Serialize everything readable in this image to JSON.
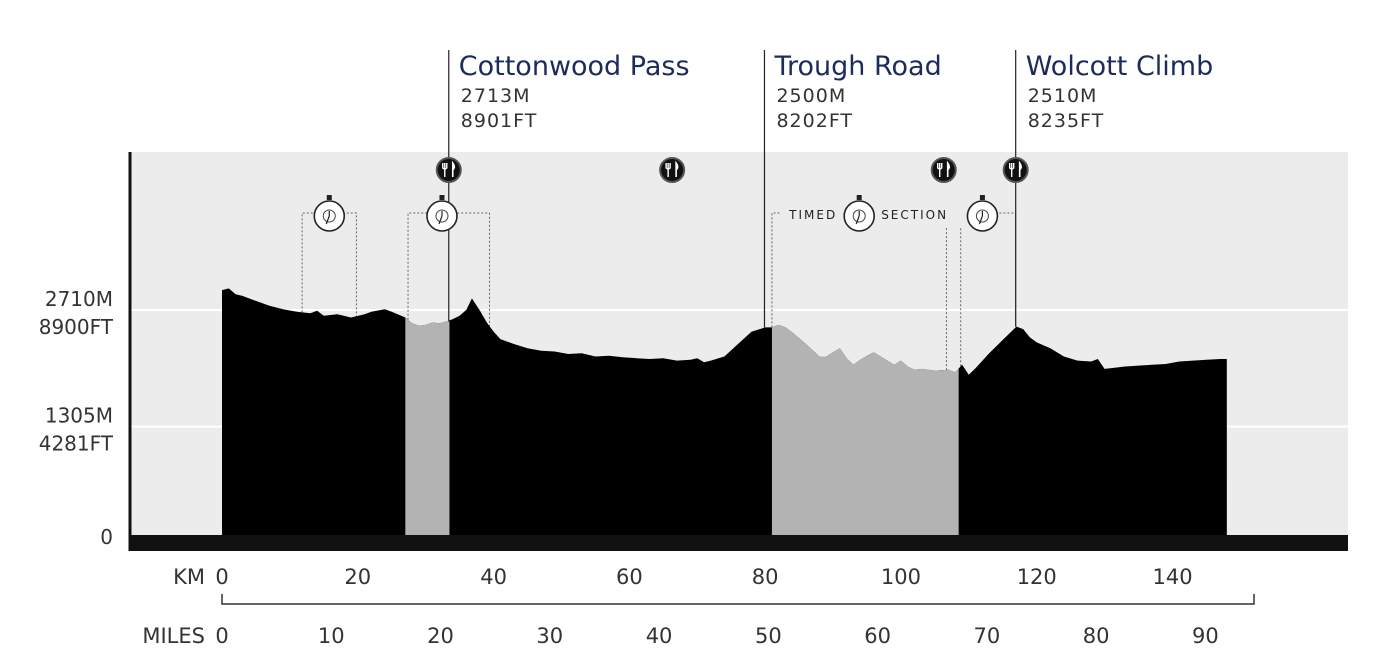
{
  "chart_data": {
    "type": "area",
    "title": "",
    "x_unit": "KM",
    "x2_unit": "MILES",
    "km_ticks": [
      0,
      20,
      40,
      60,
      80,
      100,
      120,
      140
    ],
    "miles_ticks": [
      0,
      10,
      20,
      30,
      40,
      50,
      60,
      70,
      80,
      90
    ],
    "xlim_km": [
      0,
      152
    ],
    "ylim_m": [
      0,
      4200
    ],
    "y_ticks": [
      {
        "value_m": 2710,
        "label_m": "2710M",
        "label_ft": "8900FT"
      },
      {
        "value_m": 1305,
        "label_m": "1305M",
        "label_ft": "4281FT"
      },
      {
        "value_m": 0,
        "label_m": "0",
        "label_ft": ""
      }
    ],
    "profile": [
      [
        0,
        2950
      ],
      [
        1,
        2970
      ],
      [
        2,
        2900
      ],
      [
        3,
        2880
      ],
      [
        5,
        2820
      ],
      [
        7,
        2760
      ],
      [
        9,
        2720
      ],
      [
        11,
        2690
      ],
      [
        13,
        2670
      ],
      [
        14,
        2700
      ],
      [
        15,
        2640
      ],
      [
        17,
        2660
      ],
      [
        19,
        2620
      ],
      [
        21,
        2660
      ],
      [
        22,
        2690
      ],
      [
        24,
        2720
      ],
      [
        25,
        2690
      ],
      [
        27,
        2620
      ],
      [
        28,
        2550
      ],
      [
        29,
        2520
      ],
      [
        30,
        2530
      ],
      [
        31,
        2560
      ],
      [
        32,
        2550
      ],
      [
        33,
        2570
      ],
      [
        34,
        2600
      ],
      [
        35,
        2640
      ],
      [
        36,
        2713
      ],
      [
        36.8,
        2850
      ],
      [
        38,
        2700
      ],
      [
        39,
        2560
      ],
      [
        40,
        2450
      ],
      [
        41,
        2360
      ],
      [
        43,
        2300
      ],
      [
        45,
        2250
      ],
      [
        47,
        2220
      ],
      [
        49,
        2210
      ],
      [
        51,
        2180
      ],
      [
        53,
        2190
      ],
      [
        55,
        2150
      ],
      [
        57,
        2160
      ],
      [
        59,
        2140
      ],
      [
        61,
        2130
      ],
      [
        63,
        2120
      ],
      [
        65,
        2130
      ],
      [
        67,
        2100
      ],
      [
        69,
        2110
      ],
      [
        70,
        2130
      ],
      [
        71,
        2080
      ],
      [
        72,
        2100
      ],
      [
        74,
        2150
      ],
      [
        76,
        2300
      ],
      [
        78,
        2450
      ],
      [
        80,
        2500
      ],
      [
        81,
        2500
      ],
      [
        82,
        2530
      ],
      [
        83,
        2500
      ],
      [
        84,
        2440
      ],
      [
        86,
        2300
      ],
      [
        88,
        2150
      ],
      [
        89,
        2150
      ],
      [
        90,
        2200
      ],
      [
        91,
        2250
      ],
      [
        92,
        2130
      ],
      [
        93,
        2050
      ],
      [
        94,
        2110
      ],
      [
        95,
        2160
      ],
      [
        96,
        2200
      ],
      [
        97,
        2150
      ],
      [
        98,
        2100
      ],
      [
        99,
        2050
      ],
      [
        100,
        2100
      ],
      [
        101,
        2030
      ],
      [
        102,
        1990
      ],
      [
        103,
        2000
      ],
      [
        104,
        1990
      ],
      [
        105,
        1980
      ],
      [
        107,
        1990
      ],
      [
        108,
        1960
      ],
      [
        109,
        2050
      ],
      [
        110,
        1930
      ],
      [
        111,
        2010
      ],
      [
        113,
        2190
      ],
      [
        115,
        2350
      ],
      [
        117,
        2510
      ],
      [
        118,
        2480
      ],
      [
        119,
        2380
      ],
      [
        120,
        2320
      ],
      [
        122,
        2250
      ],
      [
        124,
        2150
      ],
      [
        126,
        2100
      ],
      [
        128,
        2090
      ],
      [
        129,
        2120
      ],
      [
        130,
        2000
      ],
      [
        131,
        2010
      ],
      [
        133,
        2030
      ],
      [
        135,
        2040
      ],
      [
        137,
        2050
      ],
      [
        139,
        2060
      ],
      [
        141,
        2090
      ],
      [
        143,
        2100
      ],
      [
        145,
        2110
      ],
      [
        147,
        2120
      ],
      [
        148,
        2120
      ]
    ],
    "shaded_sections_km": [
      [
        27,
        33.5
      ],
      [
        81,
        108.5
      ]
    ],
    "passes": [
      {
        "name": "Cottonwood Pass",
        "elev_m": "2713M",
        "elev_ft": "8901FT",
        "km": 33.4
      },
      {
        "name": "Trough Road",
        "elev_m": "2500M",
        "elev_ft": "8202FT",
        "km": 79.9
      },
      {
        "name": "Wolcott Climb",
        "elev_m": "2510M",
        "elev_ft": "8235FT",
        "km": 116.9
      }
    ],
    "aid_stations_km": [
      33.4,
      66.3,
      106.3,
      116.9
    ],
    "timed_segments_km": [
      [
        11.8,
        19.8
      ],
      [
        27.4,
        39.4
      ],
      [
        81.0,
        106.7
      ],
      [
        108.8,
        116.9
      ]
    ],
    "timed_section_label": {
      "left": "TIMED",
      "right": "SECTION"
    },
    "colors": {
      "profile": "#000000",
      "shaded": "#b3b3b3",
      "panel": "#ececec",
      "title": "#1c2a5c",
      "text": "#333333"
    }
  }
}
